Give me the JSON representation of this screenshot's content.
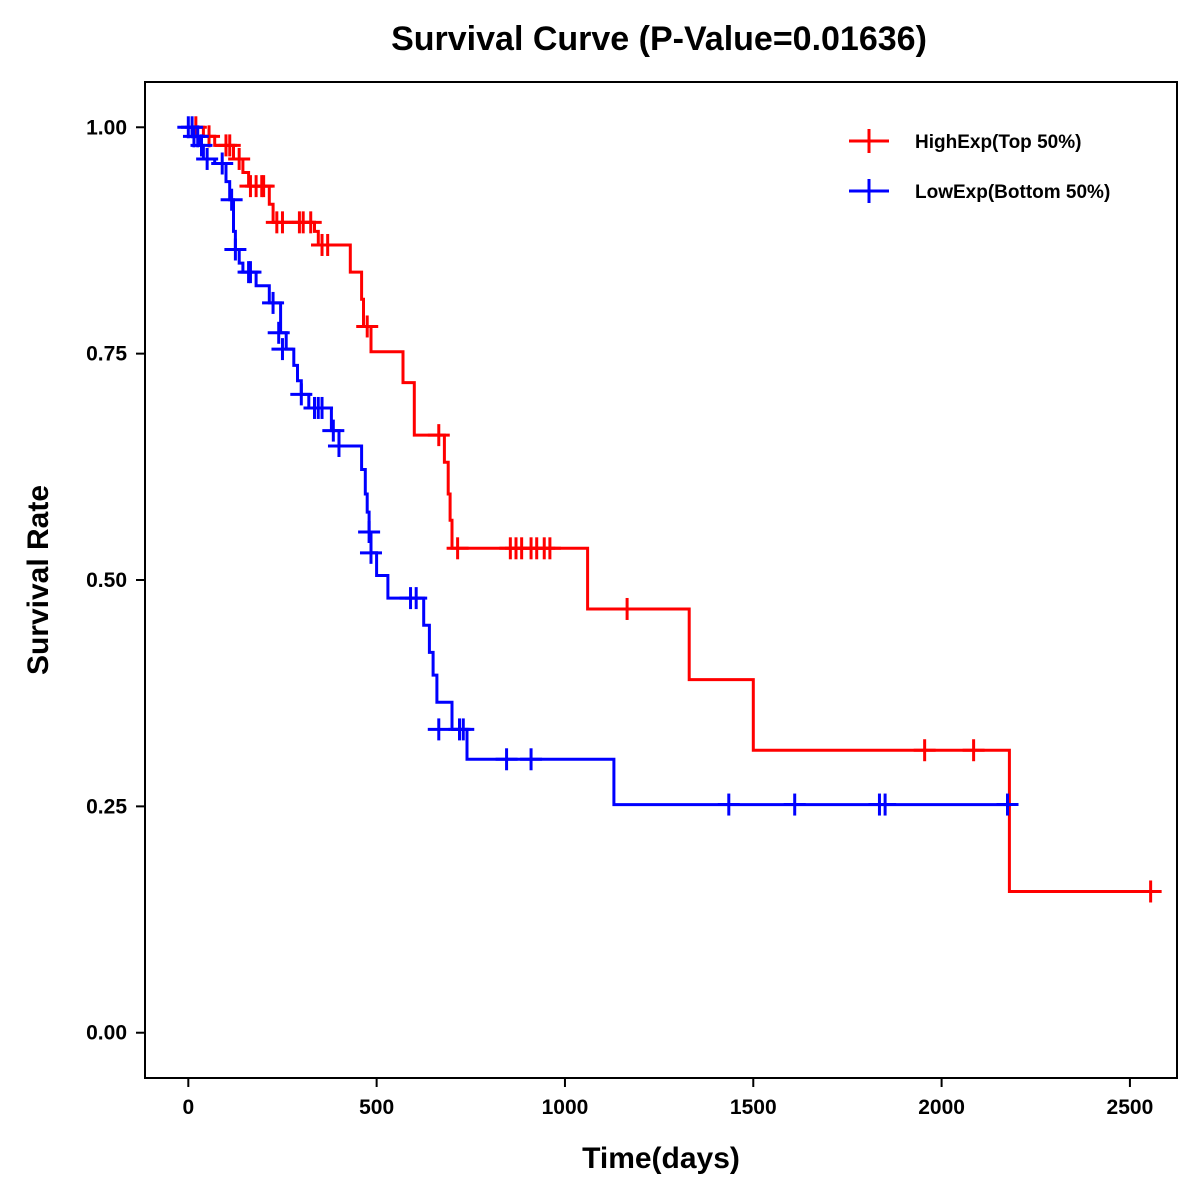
{
  "chart_data": {
    "type": "line",
    "subtype": "kaplan-meier-step",
    "title": "Survival Curve (P-Value=0.01636)",
    "xlabel": "Time(days)",
    "ylabel": "Survival Rate",
    "xlim": [
      -115,
      2625
    ],
    "ylim": [
      -0.05,
      1.05
    ],
    "x_ticks": [
      0,
      500,
      1000,
      1500,
      2000,
      2500
    ],
    "x_tick_labels": [
      "0",
      "500",
      "1000",
      "1500",
      "2000",
      "2500"
    ],
    "y_ticks": [
      0,
      0.25,
      0.5,
      0.75,
      1.0
    ],
    "y_tick_labels": [
      "0.00",
      "0.25",
      "0.50",
      "0.75",
      "1.00"
    ],
    "grid": false,
    "legend_position": "top-right",
    "series": [
      {
        "name": "HighExp(Top 50%)",
        "color": "#ff0000",
        "steps": [
          [
            0,
            1.0
          ],
          [
            40,
            0.99
          ],
          [
            70,
            0.98
          ],
          [
            120,
            0.965
          ],
          [
            145,
            0.95
          ],
          [
            160,
            0.935
          ],
          [
            215,
            0.915
          ],
          [
            225,
            0.895
          ],
          [
            335,
            0.885
          ],
          [
            345,
            0.87
          ],
          [
            430,
            0.84
          ],
          [
            460,
            0.81
          ],
          [
            465,
            0.78
          ],
          [
            485,
            0.752
          ],
          [
            570,
            0.718
          ],
          [
            600,
            0.66
          ],
          [
            680,
            0.63
          ],
          [
            690,
            0.595
          ],
          [
            695,
            0.566
          ],
          [
            700,
            0.535
          ],
          [
            1060,
            0.468
          ],
          [
            1330,
            0.39
          ],
          [
            1500,
            0.312
          ],
          [
            2180,
            0.156
          ],
          [
            2555,
            0.156
          ]
        ],
        "censored": [
          [
            20,
            1.0
          ],
          [
            55,
            0.99
          ],
          [
            100,
            0.98
          ],
          [
            110,
            0.98
          ],
          [
            135,
            0.965
          ],
          [
            165,
            0.935
          ],
          [
            180,
            0.935
          ],
          [
            195,
            0.935
          ],
          [
            200,
            0.935
          ],
          [
            235,
            0.895
          ],
          [
            250,
            0.895
          ],
          [
            295,
            0.895
          ],
          [
            305,
            0.895
          ],
          [
            325,
            0.895
          ],
          [
            355,
            0.87
          ],
          [
            370,
            0.87
          ],
          [
            475,
            0.78
          ],
          [
            665,
            0.66
          ],
          [
            715,
            0.535
          ],
          [
            855,
            0.535
          ],
          [
            870,
            0.535
          ],
          [
            885,
            0.535
          ],
          [
            910,
            0.535
          ],
          [
            925,
            0.535
          ],
          [
            945,
            0.535
          ],
          [
            960,
            0.535
          ],
          [
            1165,
            0.468
          ],
          [
            1955,
            0.312
          ],
          [
            2085,
            0.312
          ],
          [
            2555,
            0.156
          ]
        ]
      },
      {
        "name": "LowExp(Bottom 50%)",
        "color": "#0000ff",
        "steps": [
          [
            0,
            1.0
          ],
          [
            10,
            0.99
          ],
          [
            30,
            0.98
          ],
          [
            40,
            0.965
          ],
          [
            70,
            0.96
          ],
          [
            100,
            0.94
          ],
          [
            110,
            0.92
          ],
          [
            120,
            0.885
          ],
          [
            125,
            0.865
          ],
          [
            135,
            0.85
          ],
          [
            145,
            0.84
          ],
          [
            180,
            0.825
          ],
          [
            215,
            0.806
          ],
          [
            245,
            0.773
          ],
          [
            260,
            0.755
          ],
          [
            280,
            0.737
          ],
          [
            290,
            0.72
          ],
          [
            300,
            0.705
          ],
          [
            320,
            0.69
          ],
          [
            380,
            0.665
          ],
          [
            400,
            0.648
          ],
          [
            460,
            0.622
          ],
          [
            470,
            0.595
          ],
          [
            475,
            0.575
          ],
          [
            480,
            0.553
          ],
          [
            485,
            0.53
          ],
          [
            500,
            0.505
          ],
          [
            530,
            0.48
          ],
          [
            625,
            0.45
          ],
          [
            640,
            0.42
          ],
          [
            650,
            0.395
          ],
          [
            660,
            0.365
          ],
          [
            700,
            0.335
          ],
          [
            740,
            0.302
          ],
          [
            1130,
            0.252
          ],
          [
            2185,
            0.252
          ]
        ],
        "censored": [
          [
            0,
            1.0
          ],
          [
            10,
            1.0
          ],
          [
            15,
            0.99
          ],
          [
            25,
            0.99
          ],
          [
            35,
            0.98
          ],
          [
            50,
            0.965
          ],
          [
            90,
            0.96
          ],
          [
            115,
            0.92
          ],
          [
            125,
            0.865
          ],
          [
            160,
            0.84
          ],
          [
            165,
            0.84
          ],
          [
            225,
            0.806
          ],
          [
            240,
            0.773
          ],
          [
            250,
            0.755
          ],
          [
            300,
            0.705
          ],
          [
            335,
            0.69
          ],
          [
            345,
            0.69
          ],
          [
            355,
            0.69
          ],
          [
            385,
            0.665
          ],
          [
            400,
            0.648
          ],
          [
            480,
            0.553
          ],
          [
            485,
            0.53
          ],
          [
            590,
            0.48
          ],
          [
            605,
            0.48
          ],
          [
            665,
            0.335
          ],
          [
            720,
            0.335
          ],
          [
            730,
            0.335
          ],
          [
            845,
            0.302
          ],
          [
            910,
            0.302
          ],
          [
            1435,
            0.252
          ],
          [
            1610,
            0.252
          ],
          [
            1835,
            0.252
          ],
          [
            1850,
            0.252
          ],
          [
            2175,
            0.252
          ]
        ]
      }
    ]
  }
}
